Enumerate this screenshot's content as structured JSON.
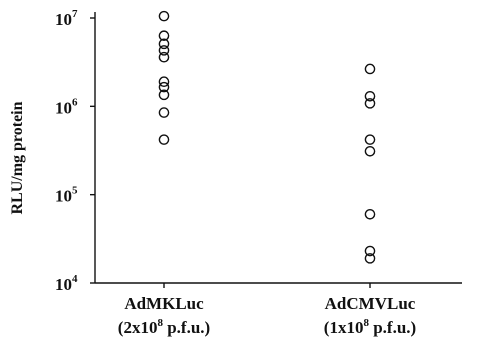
{
  "chart_data": {
    "type": "scatter",
    "title": "",
    "ylabel": "RLU/mg protein",
    "xlabel": "",
    "yscale": "log",
    "ylim": [
      10000,
      10000000
    ],
    "yticks": [
      {
        "value": 10000,
        "base": "10",
        "exp": "4"
      },
      {
        "value": 100000,
        "base": "10",
        "exp": "5"
      },
      {
        "value": 1000000,
        "base": "10",
        "exp": "6"
      },
      {
        "value": 10000000,
        "base": "10",
        "exp": "7"
      }
    ],
    "grid": false,
    "categories": [
      {
        "name": "AdMKLuc",
        "dose": "(2x10",
        "dose_exp": "8",
        "dose_unit": " p.f.u.)"
      },
      {
        "name": "AdCMVLuc",
        "dose": "(1x10",
        "dose_exp": "8",
        "dose_unit": " p.f.u.)"
      }
    ],
    "series": [
      {
        "category": "AdMKLuc",
        "values": [
          10500000,
          6300000,
          5100000,
          4300000,
          3600000,
          1900000,
          1650000,
          1350000,
          850000,
          420000
        ]
      },
      {
        "category": "AdCMVLuc",
        "values": [
          2650000,
          1300000,
          1080000,
          420000,
          310000,
          60000,
          23000,
          19000
        ]
      }
    ]
  }
}
